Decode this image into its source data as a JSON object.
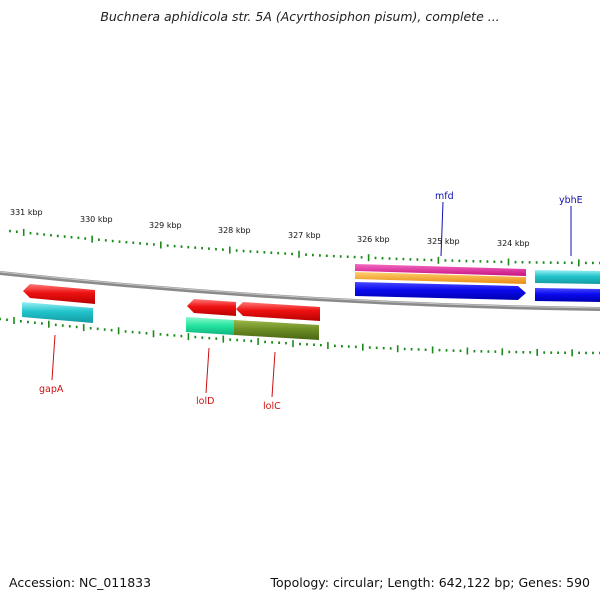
{
  "title": "Buchnera aphidicola str. 5A (Acyrthosiphon pisum), complete ...",
  "footer": {
    "accession": "Accession: NC_011833",
    "topology": "Topology: circular; Length: 642,122 bp; Genes: 590"
  },
  "ruler": {
    "unit": "kbp",
    "labels": [
      "331 kbp",
      "330 kbp",
      "329 kbp",
      "328 kbp",
      "327 kbp",
      "326 kbp",
      "325 kbp",
      "324 kbp"
    ]
  },
  "genes": {
    "forward_labels": [
      "mfd",
      "ybhE"
    ],
    "reverse_labels": [
      "gapA",
      "lolD",
      "lolC"
    ]
  },
  "colors": {
    "tick": "#1a8a1a",
    "backbone": "#888888",
    "forward_label": "#1010b0",
    "reverse_label": "#cc1010",
    "red": "#ee1111",
    "cyan": "#22c4cc",
    "blue": "#0a0aee",
    "magenta": "#e0189a",
    "orange": "#f5a020",
    "spring_green": "#22e3a0",
    "olive": "#6a8a22"
  }
}
